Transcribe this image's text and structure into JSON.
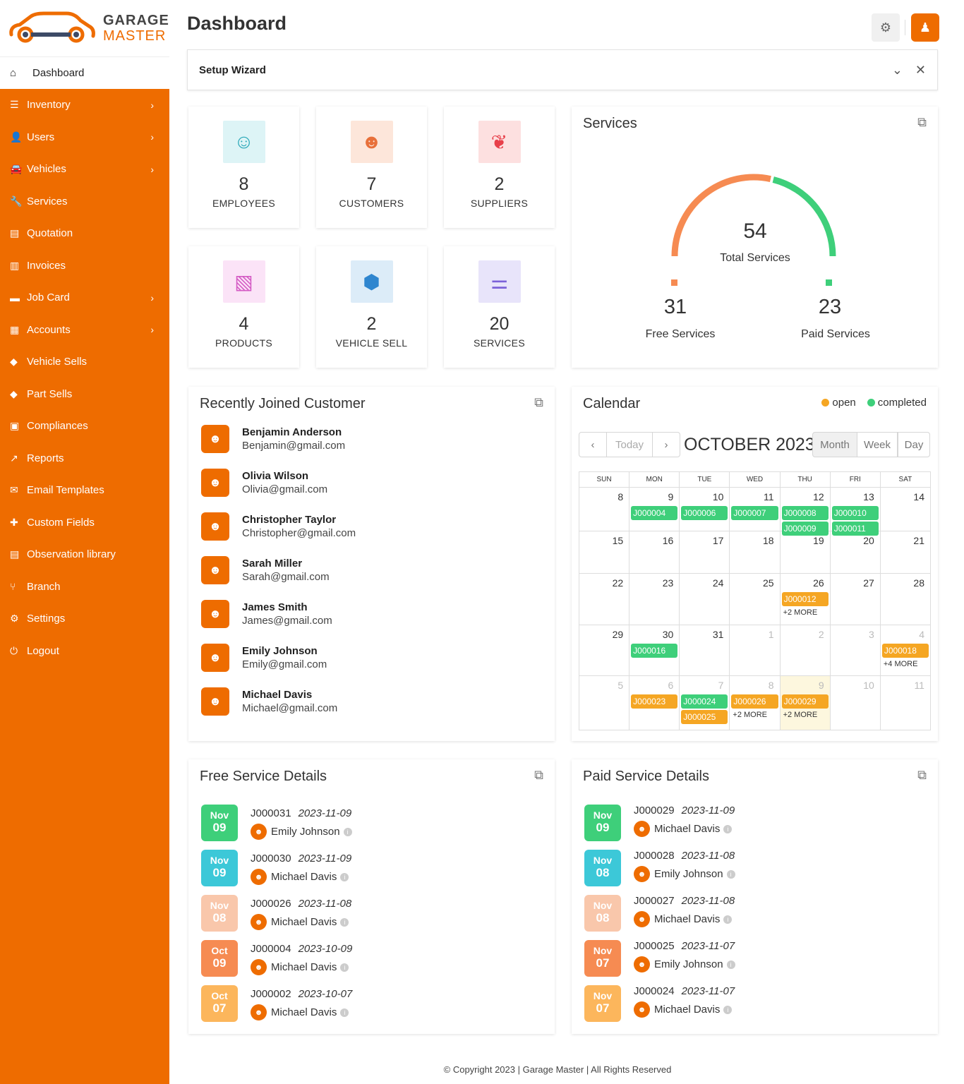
{
  "brand": {
    "line1": "GARAGE",
    "line2": "MASTER",
    "accent": "#ee6c00"
  },
  "sidebar": {
    "active": {
      "label": "Dashboard",
      "icon": "home-icon"
    },
    "items": [
      {
        "label": "Inventory",
        "icon": "sliders-icon",
        "chevron": true
      },
      {
        "label": "Users",
        "icon": "user-icon",
        "chevron": true
      },
      {
        "label": "Vehicles",
        "icon": "car-icon",
        "chevron": true
      },
      {
        "label": "Services",
        "icon": "wrench-icon",
        "chevron": false
      },
      {
        "label": "Quotation",
        "icon": "document-icon",
        "chevron": false
      },
      {
        "label": "Invoices",
        "icon": "invoice-icon",
        "chevron": false
      },
      {
        "label": "Job Card",
        "icon": "card-icon",
        "chevron": true
      },
      {
        "label": "Accounts",
        "icon": "calculator-icon",
        "chevron": true
      },
      {
        "label": "Vehicle Sells",
        "icon": "tag-icon",
        "chevron": false
      },
      {
        "label": "Part Sells",
        "icon": "tag-icon",
        "chevron": false
      },
      {
        "label": "Compliances",
        "icon": "clipboard-icon",
        "chevron": false
      },
      {
        "label": "Reports",
        "icon": "chart-icon",
        "chevron": false
      },
      {
        "label": "Email Templates",
        "icon": "email-template-icon",
        "chevron": false
      },
      {
        "label": "Custom Fields",
        "icon": "puzzle-icon",
        "chevron": false
      },
      {
        "label": "Observation library",
        "icon": "file-icon",
        "chevron": false
      },
      {
        "label": "Branch",
        "icon": "branch-icon",
        "chevron": false
      },
      {
        "label": "Settings",
        "icon": "gear-icon",
        "chevron": false
      },
      {
        "label": "Logout",
        "icon": "power-icon",
        "chevron": false
      }
    ]
  },
  "header": {
    "title": "Dashboard"
  },
  "wizard": {
    "title": "Setup Wizard"
  },
  "stats": [
    {
      "value": "8",
      "label": "EMPLOYEES",
      "icon": "person-icon",
      "bg": "#ddf4f6",
      "fg": "#2aa8b8"
    },
    {
      "value": "7",
      "label": "CUSTOMERS",
      "icon": "client-icon",
      "bg": "#fde6da",
      "fg": "#e8703a"
    },
    {
      "value": "2",
      "label": "SUPPLIERS",
      "icon": "group-icon",
      "bg": "#fde0e0",
      "fg": "#e8404a"
    },
    {
      "value": "4",
      "label": "PRODUCTS",
      "icon": "boxes-icon",
      "bg": "#fbe3f7",
      "fg": "#d45ac4"
    },
    {
      "value": "2",
      "label": "VEHICLE SELL",
      "icon": "chart-shield-icon",
      "bg": "#dcecf8",
      "fg": "#2f86cf"
    },
    {
      "value": "20",
      "label": "SERVICES",
      "icon": "settings-slider-icon",
      "bg": "#e8e4fa",
      "fg": "#7b62d8"
    }
  ],
  "services": {
    "title": "Services",
    "total": "54",
    "total_label": "Total Services",
    "free": "31",
    "free_label": "Free Services",
    "free_color": "#f68b52",
    "paid": "23",
    "paid_label": "Paid Services",
    "paid_color": "#3ecf7a"
  },
  "customers": {
    "title": "Recently Joined Customer",
    "list": [
      {
        "name": "Benjamin Anderson",
        "email": "Benjamin@gmail.com"
      },
      {
        "name": "Olivia Wilson",
        "email": "Olivia@gmail.com"
      },
      {
        "name": "Christopher Taylor",
        "email": "Christopher@gmail.com"
      },
      {
        "name": "Sarah Miller",
        "email": "Sarah@gmail.com"
      },
      {
        "name": "James Smith",
        "email": "James@gmail.com"
      },
      {
        "name": "Emily Johnson",
        "email": "Emily@gmail.com"
      },
      {
        "name": "Michael Davis",
        "email": "Michael@gmail.com"
      }
    ]
  },
  "calendar": {
    "title": "Calendar",
    "legend": [
      {
        "label": "open",
        "color": "#f5a623"
      },
      {
        "label": "completed",
        "color": "#3ecf7a"
      }
    ],
    "today_label": "Today",
    "month": "OCTOBER 2023",
    "views": [
      "Month",
      "Week",
      "Day"
    ],
    "weekdays": [
      "SUN",
      "MON",
      "TUE",
      "WED",
      "THU",
      "FRI",
      "SAT"
    ],
    "weeks": [
      {
        "h": 62,
        "days": [
          {
            "d": "8",
            "events": []
          },
          {
            "d": "9",
            "events": [
              {
                "t": "J000004",
                "s": "c"
              }
            ]
          },
          {
            "d": "10",
            "events": [
              {
                "t": "J000006",
                "s": "c"
              }
            ]
          },
          {
            "d": "11",
            "events": [
              {
                "t": "J000007",
                "s": "c"
              }
            ]
          },
          {
            "d": "12",
            "events": [
              {
                "t": "J000008",
                "s": "c"
              },
              {
                "t": "J000009",
                "s": "c"
              }
            ]
          },
          {
            "d": "13",
            "events": [
              {
                "t": "J000010",
                "s": "c"
              },
              {
                "t": "J000011",
                "s": "c"
              }
            ]
          },
          {
            "d": "14",
            "events": []
          }
        ]
      },
      {
        "h": 60,
        "days": [
          {
            "d": "15",
            "events": []
          },
          {
            "d": "16",
            "events": []
          },
          {
            "d": "17",
            "events": []
          },
          {
            "d": "18",
            "events": []
          },
          {
            "d": "19",
            "events": []
          },
          {
            "d": "20",
            "events": []
          },
          {
            "d": "21",
            "events": []
          }
        ]
      },
      {
        "h": 73,
        "days": [
          {
            "d": "22",
            "events": []
          },
          {
            "d": "23",
            "events": []
          },
          {
            "d": "24",
            "events": []
          },
          {
            "d": "25",
            "events": []
          },
          {
            "d": "26",
            "events": [
              {
                "t": "J000012",
                "s": "o"
              }
            ],
            "more": "+2 MORE"
          },
          {
            "d": "27",
            "events": []
          },
          {
            "d": "28",
            "events": []
          }
        ]
      },
      {
        "h": 72,
        "days": [
          {
            "d": "29",
            "events": []
          },
          {
            "d": "30",
            "events": [
              {
                "t": "J000016",
                "s": "c"
              }
            ]
          },
          {
            "d": "31",
            "events": []
          },
          {
            "d": "1",
            "other": true,
            "events": []
          },
          {
            "d": "2",
            "other": true,
            "events": []
          },
          {
            "d": "3",
            "other": true,
            "events": []
          },
          {
            "d": "4",
            "other": true,
            "events": [
              {
                "t": "J000018",
                "s": "o"
              }
            ],
            "more": "+4 MORE"
          }
        ]
      },
      {
        "h": 77,
        "days": [
          {
            "d": "5",
            "other": true,
            "events": []
          },
          {
            "d": "6",
            "other": true,
            "events": [
              {
                "t": "J000023",
                "s": "o"
              }
            ]
          },
          {
            "d": "7",
            "other": true,
            "events": [
              {
                "t": "J000024",
                "s": "c"
              },
              {
                "t": "J000025",
                "s": "o"
              }
            ]
          },
          {
            "d": "8",
            "other": true,
            "events": [
              {
                "t": "J000026",
                "s": "o"
              }
            ],
            "more": "+2 MORE"
          },
          {
            "d": "9",
            "other": true,
            "today": true,
            "events": [
              {
                "t": "J000029",
                "s": "o"
              }
            ],
            "more": "+2 MORE"
          },
          {
            "d": "10",
            "other": true,
            "events": []
          },
          {
            "d": "11",
            "other": true,
            "events": []
          }
        ]
      }
    ]
  },
  "free_services": {
    "title": "Free Service Details",
    "list": [
      {
        "mon": "Nov",
        "day": "09",
        "job": "J000031",
        "date": "2023-11-09",
        "cust": "Emily Johnson",
        "color": "#3ecf7a"
      },
      {
        "mon": "Nov",
        "day": "09",
        "job": "J000030",
        "date": "2023-11-09",
        "cust": "Michael Davis",
        "color": "#3cc8d8"
      },
      {
        "mon": "Nov",
        "day": "08",
        "job": "J000026",
        "date": "2023-11-08",
        "cust": "Michael Davis",
        "color": "#f9c7ab"
      },
      {
        "mon": "Oct",
        "day": "09",
        "job": "J000004",
        "date": "2023-10-09",
        "cust": "Michael Davis",
        "color": "#f68b52"
      },
      {
        "mon": "Oct",
        "day": "07",
        "job": "J000002",
        "date": "2023-10-07",
        "cust": "Michael Davis",
        "color": "#fcb65c"
      }
    ]
  },
  "paid_services": {
    "title": "Paid Service Details",
    "list": [
      {
        "mon": "Nov",
        "day": "09",
        "job": "J000029",
        "date": "2023-11-09",
        "cust": "Michael Davis",
        "color": "#3ecf7a"
      },
      {
        "mon": "Nov",
        "day": "08",
        "job": "J000028",
        "date": "2023-11-08",
        "cust": "Emily Johnson",
        "color": "#3cc8d8"
      },
      {
        "mon": "Nov",
        "day": "08",
        "job": "J000027",
        "date": "2023-11-08",
        "cust": "Michael Davis",
        "color": "#f9c7ab"
      },
      {
        "mon": "Nov",
        "day": "07",
        "job": "J000025",
        "date": "2023-11-07",
        "cust": "Emily Johnson",
        "color": "#f68b52"
      },
      {
        "mon": "Nov",
        "day": "07",
        "job": "J000024",
        "date": "2023-11-07",
        "cust": "Michael Davis",
        "color": "#fcb65c"
      }
    ]
  },
  "footer": "© Copyright 2023 | Garage Master | All Rights Reserved"
}
